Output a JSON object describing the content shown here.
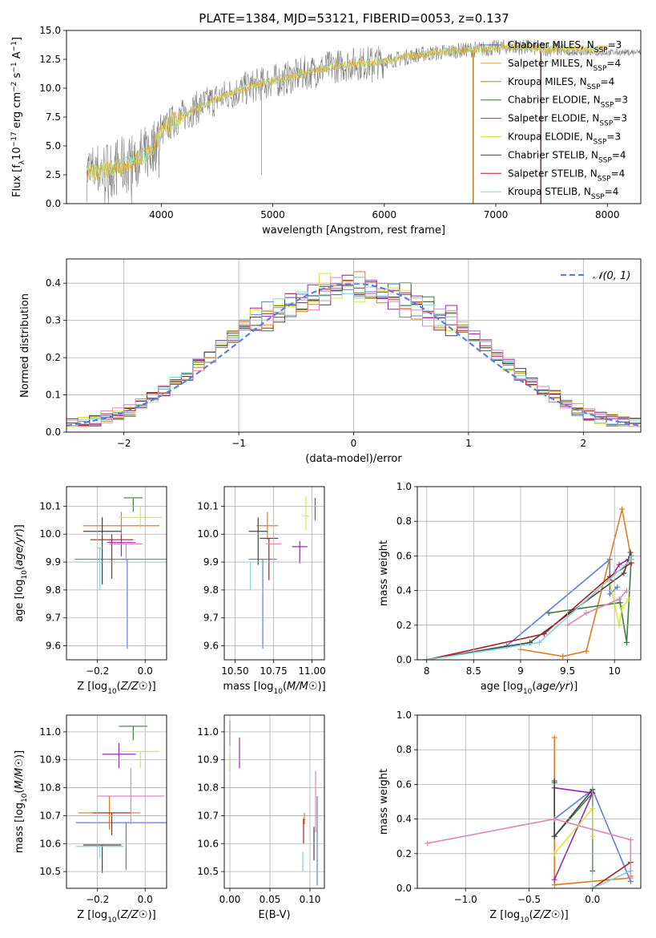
{
  "figure_title": "PLATE=1384, MJD=53121, FIBERID=0053, z=0.137",
  "colors": {
    "Chabrier MILES": "#4c6fcc",
    "Salpeter MILES": "#e3a03a",
    "Kroupa MILES": "#b7862a",
    "Chabrier ELODIE": "#3b7a3b",
    "Salpeter ELODIE": "#9b27b0",
    "Kroupa ELODIE": "#dde44a",
    "Chabrier STELIB": "#444444",
    "Salpeter STELIB": "#b01c1c",
    "Kroupa STELIB": "#7fd6d6",
    "lineplot": [
      "#5b7fd8",
      "#e07b1f",
      "#3e7d3e",
      "#9b27b0",
      "#d7e83a",
      "#444444",
      "#b01c1c",
      "#7fd6d6",
      "#e087b7"
    ]
  },
  "chart_data": [
    {
      "id": "spectrum",
      "type": "line",
      "xlabel": "wavelength [Angstrom, rest frame]",
      "ylabel": "Flux [f",
      "ylabel_parts": [
        "Flux [f",
        "λ",
        "10",
        "−17",
        " erg cm",
        "−2",
        " s",
        "−1",
        " A",
        "−1",
        "]"
      ],
      "xlim": [
        3150,
        8300
      ],
      "ylim": [
        0,
        15
      ],
      "xticks": [
        4000,
        5000,
        6000,
        7000,
        8000
      ],
      "yticks": [
        0.0,
        2.5,
        5.0,
        7.5,
        10.0,
        12.5,
        15.0
      ],
      "grid": false,
      "legend_position": "top-right",
      "legend": [
        {
          "text": "Chabrier MILES, N",
          "sub": "SSP",
          "tail": "=3"
        },
        {
          "text": "Salpeter MILES, N",
          "sub": "SSP",
          "tail": "=4"
        },
        {
          "text": "Kroupa MILES, N",
          "sub": "SSP",
          "tail": "=4"
        },
        {
          "text": "Chabrier ELODIE, N",
          "sub": "SSP",
          "tail": "=3"
        },
        {
          "text": "Salpeter ELODIE, N",
          "sub": "SSP",
          "tail": "=3"
        },
        {
          "text": "Kroupa ELODIE, N",
          "sub": "SSP",
          "tail": "=3"
        },
        {
          "text": "Chabrier STELIB, N",
          "sub": "SSP",
          "tail": "=4"
        },
        {
          "text": "Salpeter STELIB, N",
          "sub": "SSP",
          "tail": "=4"
        },
        {
          "text": "Kroupa STELIB, N",
          "sub": "SSP",
          "tail": "=4"
        }
      ],
      "continuum_x": [
        3330,
        3500,
        3700,
        3900,
        4000,
        4100,
        4300,
        4500,
        4700,
        4900,
        5100,
        5300,
        5500,
        5700,
        5900,
        6100,
        6300,
        6500,
        6700,
        6900,
        7100,
        7300,
        7500
      ],
      "continuum_y": [
        2.7,
        2.9,
        3.4,
        4.5,
        6.2,
        7.1,
        8.2,
        9.1,
        9.8,
        10.4,
        10.8,
        11.3,
        11.8,
        12.1,
        12.2,
        12.5,
        12.9,
        13.1,
        13.3,
        13.4,
        13.6,
        13.5,
        13.4
      ],
      "model_x_end": 8000
    },
    {
      "id": "residuals",
      "type": "histogram",
      "xlabel": "(data-model)/error",
      "ylabel": "Normed distribution",
      "xlim": [
        -2.5,
        2.5
      ],
      "ylim": [
        0,
        0.465
      ],
      "xticks": [
        -2,
        -1,
        0,
        1,
        2
      ],
      "xtick_labels": [
        "−2",
        "−1",
        "0",
        "1",
        "2"
      ],
      "yticks": [
        0.0,
        0.1,
        0.2,
        0.3,
        0.4
      ],
      "grid": true,
      "legend_position": "top-right",
      "legend": "𝒩(0, 1)",
      "bin_width": 0.1
    },
    {
      "id": "age-vs-Z",
      "type": "scatter",
      "xlabel": "Z [log10(Z/Z☉)]",
      "ylabel": "age  [log10(age/yr)]",
      "xlim": [
        -0.33,
        0.09
      ],
      "ylim": [
        9.55,
        10.17
      ],
      "xticks": [
        -0.2,
        0.0
      ],
      "xtick_labels": [
        "−0.2",
        "0.0"
      ],
      "yticks": [
        9.6,
        9.7,
        9.8,
        9.9,
        10.0,
        10.1
      ],
      "grid": true,
      "points": [
        {
          "x": -0.075,
          "y": 9.91,
          "xerr": 0.22,
          "yerr": [
            0.32,
            0.0
          ]
        },
        {
          "x": -0.1,
          "y": 10.03,
          "xerr": 0.16,
          "yerr": [
            0.05,
            0.05
          ]
        },
        {
          "x": -0.05,
          "y": 10.13,
          "xerr": 0.04,
          "yerr": [
            0.05,
            0.0
          ]
        },
        {
          "x": -0.1,
          "y": 9.97,
          "xerr": 0.06,
          "yerr": [
            0.05,
            0.03
          ]
        },
        {
          "x": -0.02,
          "y": 10.06,
          "xerr": 0.09,
          "yerr": [
            0.04,
            0.04
          ]
        },
        {
          "x": -0.18,
          "y": 10.01,
          "xerr": 0.08,
          "yerr": [
            0.19,
            0.05
          ]
        },
        {
          "x": -0.14,
          "y": 9.98,
          "xerr": 0.09,
          "yerr": [
            0.14,
            0.02
          ]
        },
        {
          "x": -0.19,
          "y": 9.95,
          "xerr": 0.01,
          "yerr": [
            0.15,
            0.0
          ]
        },
        {
          "x": -0.08,
          "y": 9.965,
          "xerr": 0.07,
          "yerr": [
            0.06,
            0.0
          ]
        }
      ]
    },
    {
      "id": "age-vs-mass",
      "type": "scatter",
      "xlabel": "mass [log10(M/M☉)]",
      "ylabel": "",
      "xlim": [
        10.43,
        11.08
      ],
      "ylim": [
        9.55,
        10.17
      ],
      "xticks": [
        10.5,
        10.75,
        11.0
      ],
      "xtick_labels": [
        "10.50",
        "10.75",
        "11.00"
      ],
      "yticks": [
        9.6,
        9.7,
        9.8,
        9.9,
        10.0,
        10.1
      ],
      "grid": true,
      "points": [
        {
          "x": 10.68,
          "y": 9.91,
          "xerr": 0.09,
          "yerr": [
            0.32,
            0.0
          ]
        },
        {
          "x": 10.71,
          "y": 10.03,
          "xerr": 0.07,
          "yerr": [
            0.05,
            0.05
          ]
        },
        {
          "x": 11.02,
          "y": 10.13,
          "xerr": 0.0,
          "yerr": [
            0.08,
            0.0
          ]
        },
        {
          "x": 10.92,
          "y": 9.955,
          "xerr": 0.05,
          "yerr": [
            0.06,
            0.02
          ]
        },
        {
          "x": 10.96,
          "y": 10.065,
          "xerr": 0.02,
          "yerr": [
            0.05,
            0.07
          ]
        },
        {
          "x": 10.65,
          "y": 10.01,
          "xerr": 0.06,
          "yerr": [
            0.12,
            0.05
          ]
        },
        {
          "x": 10.72,
          "y": 9.985,
          "xerr": 0.06,
          "yerr": [
            0.15,
            0.0
          ]
        },
        {
          "x": 10.6,
          "y": 9.9,
          "xerr": 0.0,
          "yerr": [
            0.1,
            0.0
          ]
        },
        {
          "x": 10.75,
          "y": 9.965,
          "xerr": 0.05,
          "yerr": [
            0.0,
            0.0
          ]
        }
      ]
    },
    {
      "id": "weight-vs-age",
      "type": "line",
      "xlabel": "age  [log10(age/yr)]",
      "ylabel": "mass weight",
      "xlim": [
        7.9,
        10.28
      ],
      "ylim": [
        0,
        1.0
      ],
      "xticks": [
        8.0,
        8.5,
        9.0,
        9.5,
        10.0
      ],
      "yticks": [
        0.0,
        0.2,
        0.4,
        0.6,
        0.8,
        1.0
      ],
      "grid": true,
      "series": [
        {
          "x": [
            8.0,
            8.85,
            9.95,
            9.95,
            10.03
          ],
          "y": [
            0.0,
            0.08,
            0.58,
            0.38,
            0.42
          ]
        },
        {
          "x": [
            9.0,
            9.45,
            9.7,
            10.08,
            10.18
          ],
          "y": [
            0.06,
            0.02,
            0.05,
            0.87,
            0.58
          ]
        },
        {
          "x": [
            9.3,
            10.06,
            10.13,
            10.18
          ],
          "y": [
            0.27,
            0.33,
            0.1,
            0.6
          ]
        },
        {
          "x": [
            9.95,
            10.05,
            10.15
          ],
          "y": [
            0.46,
            0.55,
            0.58
          ]
        },
        {
          "x": [
            9.95,
            10.05,
            10.08,
            10.15
          ],
          "y": [
            0.45,
            0.2,
            0.3,
            0.35
          ]
        },
        {
          "x": [
            8.0,
            9.1,
            10.1,
            10.17
          ],
          "y": [
            0.0,
            0.1,
            0.5,
            0.62
          ]
        },
        {
          "x": [
            8.0,
            9.25,
            9.95,
            10.18
          ],
          "y": [
            0.0,
            0.15,
            0.48,
            0.56
          ]
        },
        {
          "x": [
            8.0,
            9.2,
            10.18
          ],
          "y": [
            0.0,
            0.1,
            0.58
          ]
        },
        {
          "x": [
            9.5,
            9.7,
            10.05,
            10.13
          ],
          "y": [
            0.2,
            0.27,
            0.35,
            0.4
          ]
        }
      ]
    },
    {
      "id": "mass-vs-Z",
      "type": "scatter",
      "xlabel": "Z [log10(Z/Z☉)]",
      "ylabel": "mass [log10(M/M☉)]",
      "xlim": [
        -0.33,
        0.09
      ],
      "ylim": [
        10.44,
        11.06
      ],
      "xticks": [
        -0.2,
        0.0
      ],
      "xtick_labels": [
        "−0.2",
        "0.0"
      ],
      "yticks": [
        10.5,
        10.6,
        10.7,
        10.8,
        10.9,
        11.0
      ],
      "grid": true,
      "points": [
        {
          "x": -0.08,
          "y": 10.675,
          "xerr": 0.21,
          "yerr": [
            0.17,
            0.0
          ]
        },
        {
          "x": -0.15,
          "y": 10.71,
          "xerr": 0.13,
          "yerr": [
            0.06,
            0.06
          ]
        },
        {
          "x": -0.05,
          "y": 11.02,
          "xerr": 0.06,
          "yerr": [
            0.05,
            0.0
          ]
        },
        {
          "x": -0.11,
          "y": 10.92,
          "xerr": 0.07,
          "yerr": [
            0.05,
            0.04
          ]
        },
        {
          "x": -0.02,
          "y": 10.93,
          "xerr": 0.08,
          "yerr": [
            0.06,
            0.0
          ]
        },
        {
          "x": -0.18,
          "y": 10.595,
          "xerr": 0.08,
          "yerr": [
            0.1,
            0.0
          ]
        },
        {
          "x": -0.14,
          "y": 10.71,
          "xerr": 0.08,
          "yerr": [
            0.08,
            0.0
          ]
        },
        {
          "x": -0.19,
          "y": 10.59,
          "xerr": 0.1,
          "yerr": [
            0.04,
            0.0
          ]
        },
        {
          "x": -0.06,
          "y": 10.77,
          "xerr": 0.14,
          "yerr": [
            0.1,
            0.1
          ]
        }
      ]
    },
    {
      "id": "mass-vs-EBV",
      "type": "scatter",
      "xlabel": "E(B-V)",
      "ylabel": "",
      "xlim": [
        -0.007,
        0.118
      ],
      "ylim": [
        10.44,
        11.06
      ],
      "xticks": [
        0.0,
        0.05,
        0.1
      ],
      "xtick_labels": [
        "0.00",
        "0.05",
        "0.10"
      ],
      "yticks": [
        10.5,
        10.6,
        10.7,
        10.8,
        10.9,
        11.0
      ],
      "grid": true,
      "points": [
        {
          "x": 0.109,
          "y": 10.61,
          "xerr": 0.0,
          "yerr": [
            0.16,
            0.16
          ]
        },
        {
          "x": 0.093,
          "y": 10.71,
          "xerr": 0.0,
          "yerr": [
            0.04,
            0.0
          ]
        },
        {
          "x": 0.0,
          "y": 11.0,
          "xerr": 0.0,
          "yerr": [
            0.05,
            0.04
          ]
        },
        {
          "x": 0.012,
          "y": 10.93,
          "xerr": 0.0,
          "yerr": [
            0.06,
            0.05
          ]
        },
        {
          "x": 0.0,
          "y": 10.92,
          "xerr": 0.0,
          "yerr": [
            0.06,
            0.0
          ]
        },
        {
          "x": 0.105,
          "y": 10.66,
          "xerr": 0.0,
          "yerr": [
            0.12,
            0.0
          ]
        },
        {
          "x": 0.092,
          "y": 10.69,
          "xerr": 0.0,
          "yerr": [
            0.09,
            0.0
          ]
        },
        {
          "x": 0.091,
          "y": 10.57,
          "xerr": 0.0,
          "yerr": [
            0.07,
            0.0
          ]
        },
        {
          "x": 0.107,
          "y": 10.75,
          "xerr": 0.0,
          "yerr": [
            0.11,
            0.11
          ]
        }
      ]
    },
    {
      "id": "weight-vs-Z",
      "type": "line",
      "xlabel": "Z [log10(Z/Z☉)]",
      "ylabel": "mass weight",
      "xlim": [
        -1.38,
        0.38
      ],
      "ylim": [
        0,
        1.0
      ],
      "xticks": [
        -1.0,
        -0.5,
        0.0
      ],
      "xtick_labels": [
        "−1.0",
        "−0.5",
        "0.0"
      ],
      "yticks": [
        0.0,
        0.2,
        0.4,
        0.6,
        0.8,
        1.0
      ],
      "grid": true,
      "series": [
        {
          "x": [
            -0.3,
            0.0,
            0.3
          ],
          "y": [
            0.4,
            0.57,
            0.04
          ]
        },
        {
          "x": [
            -0.3,
            -0.3,
            0.3,
            0.3
          ],
          "y": [
            0.87,
            0.02,
            0.06,
            0.07
          ]
        },
        {
          "x": [
            -0.3,
            -0.3,
            0.0,
            0.0
          ],
          "y": [
            0.61,
            0.3,
            0.55,
            0.1
          ]
        },
        {
          "x": [
            -0.3,
            0.0,
            -0.3
          ],
          "y": [
            0.05,
            0.55,
            0.58
          ]
        },
        {
          "x": [
            -0.3,
            0.0,
            0.0
          ],
          "y": [
            0.2,
            0.46,
            0.3
          ]
        },
        {
          "x": [
            -0.3,
            -0.3,
            0.0
          ],
          "y": [
            0.62,
            0.3,
            0.57
          ]
        },
        {
          "x": [
            0.0,
            0.3
          ],
          "y": [
            0.0,
            0.15
          ]
        },
        {
          "x": [
            0.0,
            0.3
          ],
          "y": [
            0.0,
            0.1
          ]
        },
        {
          "x": [
            -1.3,
            -0.3,
            0.3,
            0.3
          ],
          "y": [
            0.26,
            0.4,
            0.28,
            0.06
          ]
        }
      ]
    }
  ]
}
